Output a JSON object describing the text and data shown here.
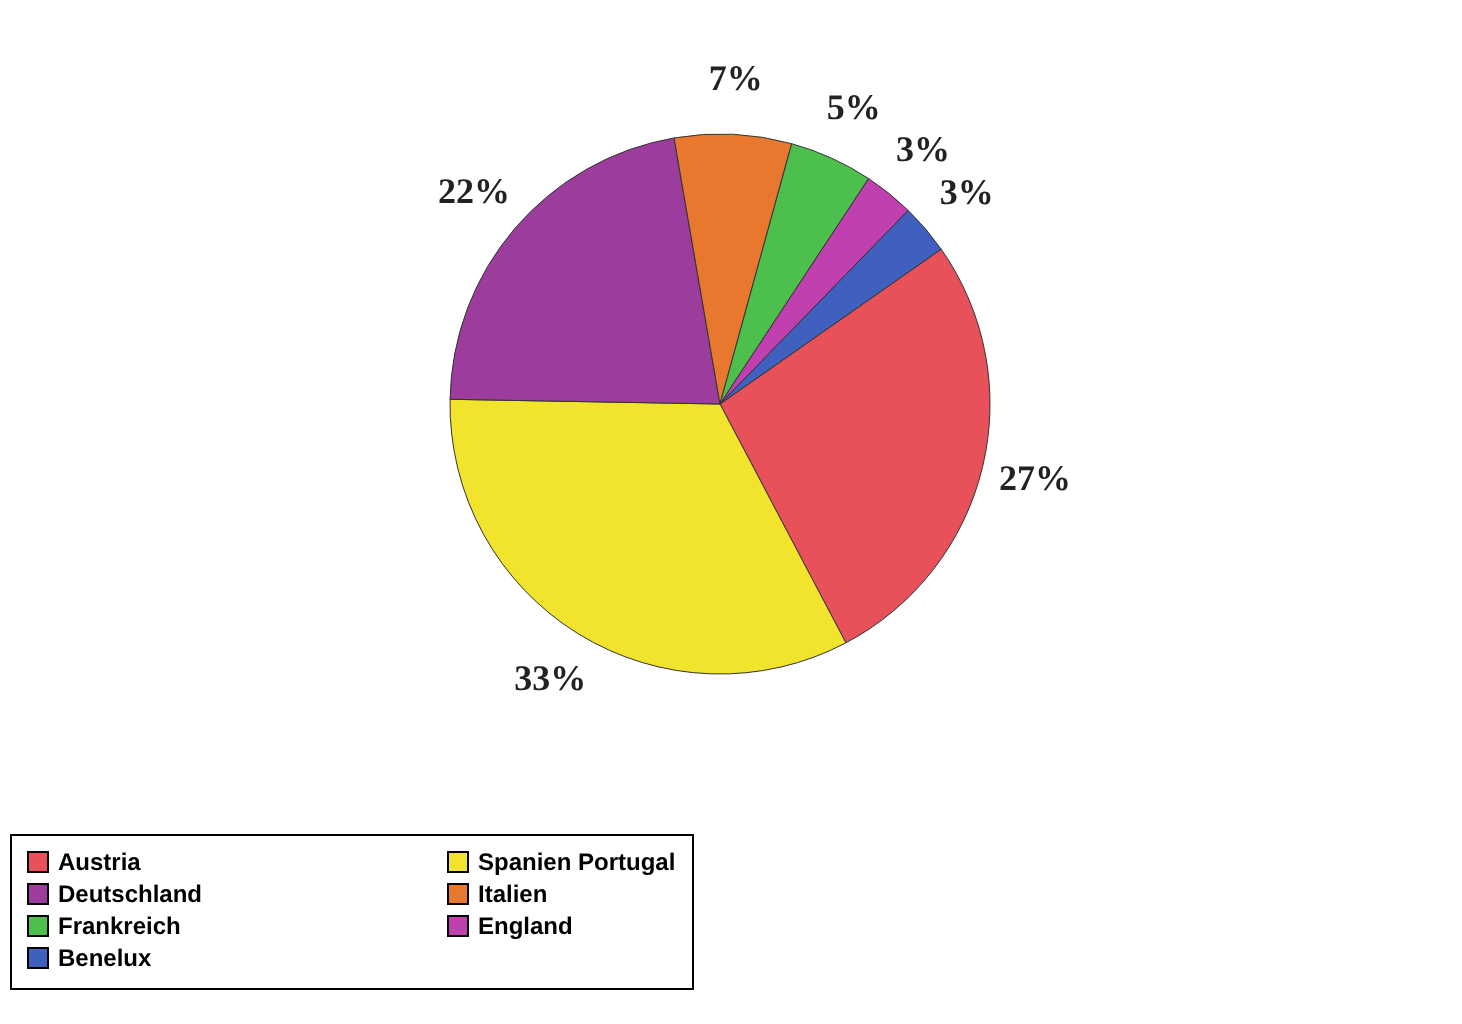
{
  "chart_data": {
    "type": "pie",
    "categories": [
      "Austria",
      "Spanien Portugal",
      "Deutschland",
      "Italien",
      "Frankreich",
      "England",
      "Benelux"
    ],
    "values": [
      27,
      33,
      22,
      7,
      5,
      3,
      3
    ],
    "value_labels": [
      "27%",
      "33%",
      "22%",
      "7%",
      "5%",
      "3%",
      "3%"
    ],
    "colors": [
      "#e8505a",
      "#f2e42c",
      "#9c3c9c",
      "#e8782e",
      "#4cbf4c",
      "#c040b0",
      "#4060c0"
    ],
    "legend": "bottom"
  }
}
